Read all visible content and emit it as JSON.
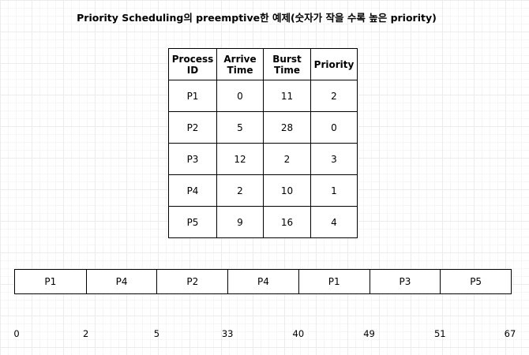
{
  "title": "Priority Scheduling의 preemptive한 예제(숫자가 작을 수록 높은 priority)",
  "table": {
    "headers": [
      "Process\nID",
      "Arrive\nTime",
      "Burst\nTime",
      "Priority"
    ],
    "rows": [
      [
        "P1",
        "0",
        "11",
        "2"
      ],
      [
        "P2",
        "5",
        "28",
        "0"
      ],
      [
        "P3",
        "12",
        "2",
        "3"
      ],
      [
        "P4",
        "2",
        "10",
        "1"
      ],
      [
        "P5",
        "9",
        "16",
        "4"
      ]
    ]
  },
  "gantt": {
    "segments": [
      {
        "label": "P1",
        "start": 0,
        "end": 2
      },
      {
        "label": "P4",
        "start": 2,
        "end": 5
      },
      {
        "label": "P2",
        "start": 5,
        "end": 33
      },
      {
        "label": "P4",
        "start": 33,
        "end": 40
      },
      {
        "label": "P1",
        "start": 40,
        "end": 49
      },
      {
        "label": "P3",
        "start": 49,
        "end": 51
      },
      {
        "label": "P5",
        "start": 51,
        "end": 67
      }
    ],
    "ticks": [
      "0",
      "2",
      "5",
      "33",
      "40",
      "49",
      "51",
      "67"
    ]
  }
}
